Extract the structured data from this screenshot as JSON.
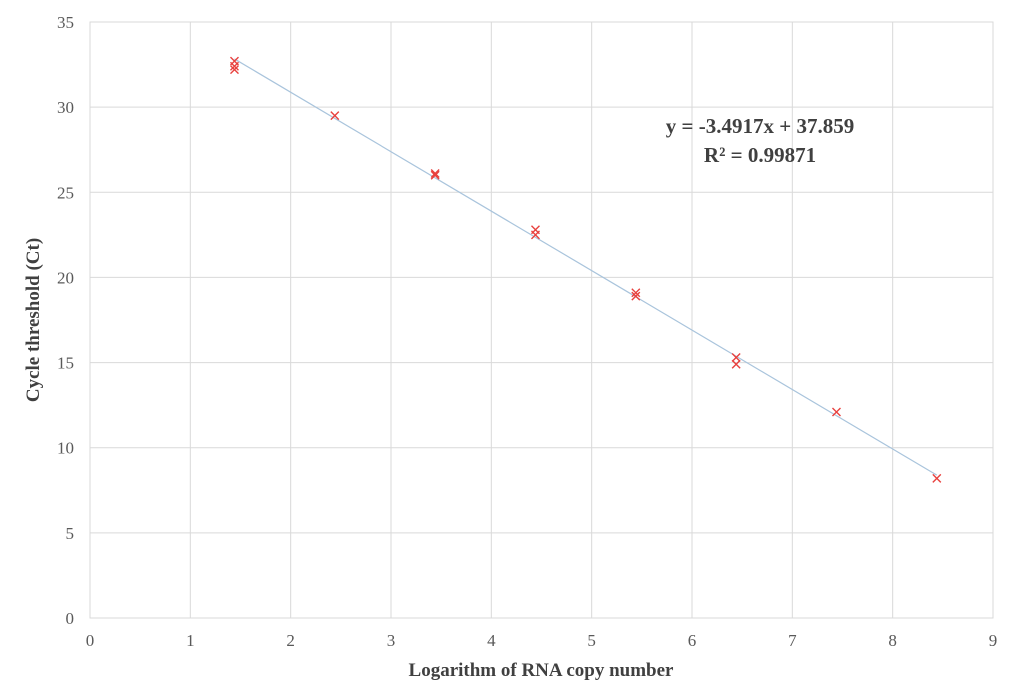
{
  "chart_data": {
    "type": "scatter",
    "xlabel": "Logarithm of RNA copy number",
    "ylabel": "Cycle threshold (Ct)",
    "xlim": [
      0,
      9
    ],
    "ylim": [
      0,
      35
    ],
    "x_ticks": [
      0,
      1,
      2,
      3,
      4,
      5,
      6,
      7,
      8,
      9
    ],
    "y_ticks": [
      0,
      5,
      10,
      15,
      20,
      25,
      30,
      35
    ],
    "grid": true,
    "marker": "x",
    "colors": {
      "points": "#e8413e",
      "trendline": "#a9c4dc",
      "grid": "#d9d9d9",
      "frame": "#d9d9d9"
    },
    "series": [
      {
        "x": [
          1.44,
          1.44,
          1.44,
          2.44,
          3.44,
          3.44,
          4.44,
          4.44,
          5.44,
          5.44,
          6.44,
          6.44,
          7.44,
          8.44
        ],
        "y": [
          32.7,
          32.4,
          32.2,
          29.5,
          26.1,
          26.0,
          22.8,
          22.5,
          19.1,
          18.9,
          15.3,
          14.9,
          12.1,
          8.2
        ]
      }
    ],
    "trendline": {
      "slope": -3.4917,
      "intercept": 37.859,
      "x_range": [
        1.44,
        8.44
      ],
      "equation": "y = -3.4917x + 37.859",
      "r_squared": "R² = 0.99871"
    }
  }
}
